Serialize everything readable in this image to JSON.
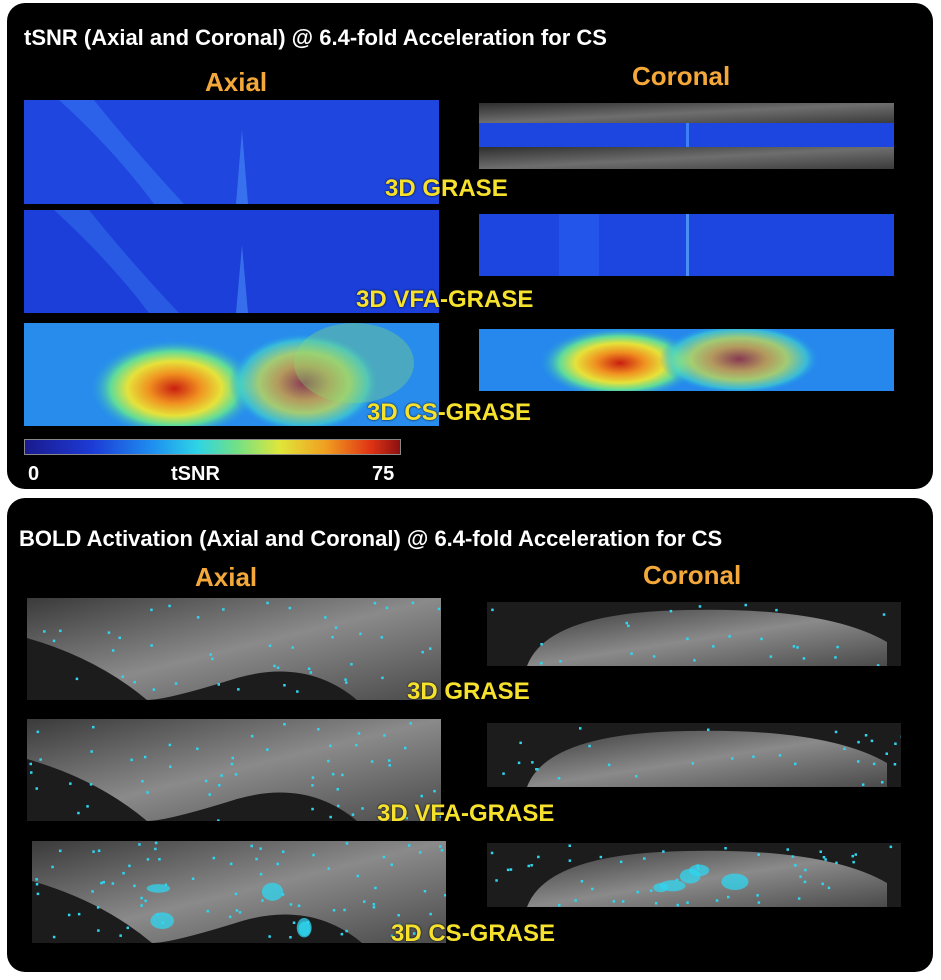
{
  "tsnr_panel": {
    "title": "tSNR (Axial and Coronal) @ 6.4-fold Acceleration for CS",
    "col_axial": "Axial",
    "col_coronal": "Coronal",
    "rows": [
      "3D GRASE",
      "3D VFA-GRASE",
      "3D CS-GRASE"
    ],
    "colorbar": {
      "min_label": "0",
      "mid_label": "tSNR",
      "max_label": "75"
    }
  },
  "bold_panel": {
    "title": "BOLD Activation (Axial and Coronal) @ 6.4-fold Acceleration for CS",
    "col_axial": "Axial",
    "col_coronal": "Coronal",
    "rows": [
      "3D GRASE",
      "3D VFA-GRASE",
      "3D CS-GRASE"
    ]
  },
  "colors": {
    "panel_bg": "#000000",
    "title_text": "#ffffff",
    "column_title": "#f4a83a",
    "row_label": "#f6e12c",
    "activation": "#2fd6f0"
  }
}
